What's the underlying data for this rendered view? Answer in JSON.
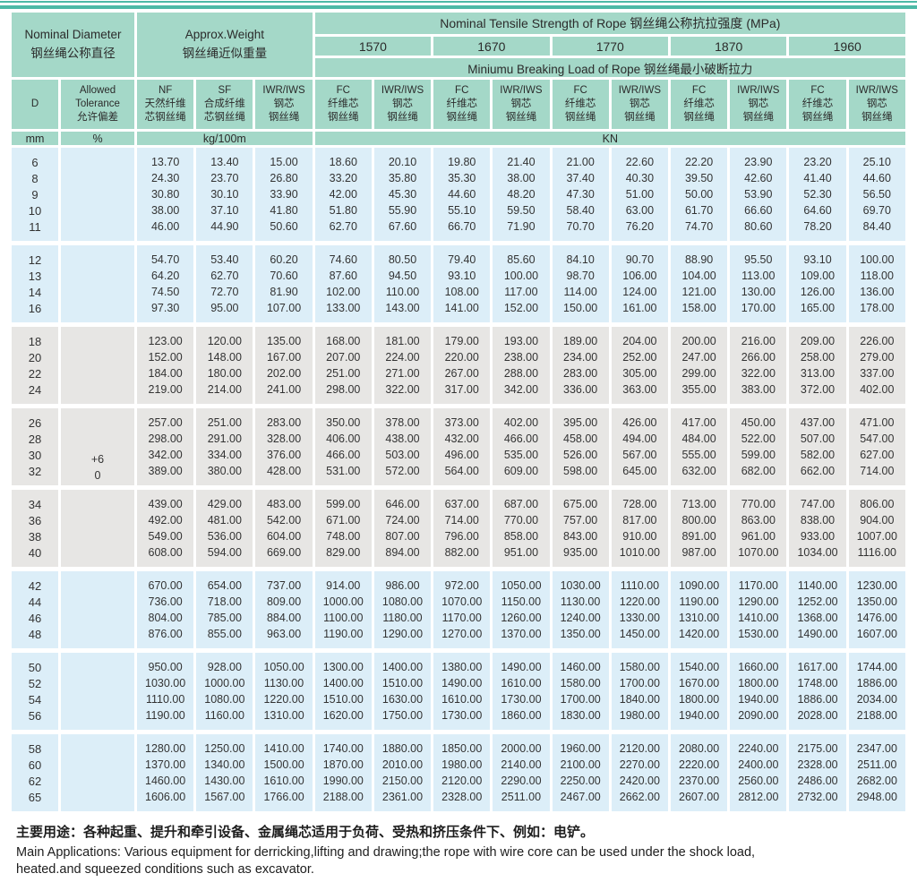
{
  "colors": {
    "header_bg": "#a4d8c8",
    "group_blue": "#dceef8",
    "group_gray": "#e7e6e4",
    "rule_teal": "#4db9a6",
    "text": "#333333"
  },
  "table": {
    "header": {
      "nominal_diameter": {
        "en": "Nominal Diameter",
        "zh": "钢丝绳公称直径"
      },
      "approx_weight": {
        "en": "Approx.Weight",
        "zh": "钢丝绳近似重量"
      },
      "tensile_title": "Nominal Tensile Strength of Rope 钢丝绳公称抗拉强度 (MPa)",
      "strengths": [
        "1570",
        "1670",
        "1770",
        "1870",
        "1960"
      ],
      "breaking_title": "Miniumu Breaking Load of Rope 钢丝绳最小破断拉力",
      "col_d": "D",
      "col_tolerance": [
        "Allowed",
        "Tolerance",
        "允许偏差"
      ],
      "col_nf": [
        "NF",
        "天然纤维",
        "芯钢丝绳"
      ],
      "col_sf": [
        "SF",
        "合成纤维",
        "芯钢丝绳"
      ],
      "col_iwr": [
        "IWR/IWS",
        "钢芯",
        "钢丝绳"
      ],
      "col_fc": [
        "FC",
        "纤维芯",
        "钢丝绳"
      ],
      "units": {
        "d": "mm",
        "tolerance": "%",
        "weight": "kg/100m",
        "load": "KN"
      }
    },
    "groups": [
      {
        "bg": "blue",
        "rows": [
          {
            "d": "6",
            "values": [
              "13.70",
              "13.40",
              "15.00",
              "18.60",
              "20.10",
              "19.80",
              "21.40",
              "21.00",
              "22.60",
              "22.20",
              "23.90",
              "23.20",
              "25.10"
            ]
          },
          {
            "d": "8",
            "values": [
              "24.30",
              "23.70",
              "26.80",
              "33.20",
              "35.80",
              "35.30",
              "38.00",
              "37.40",
              "40.30",
              "39.50",
              "42.60",
              "41.40",
              "44.60"
            ]
          },
          {
            "d": "9",
            "values": [
              "30.80",
              "30.10",
              "33.90",
              "42.00",
              "45.30",
              "44.60",
              "48.20",
              "47.30",
              "51.00",
              "50.00",
              "53.90",
              "52.30",
              "56.50"
            ]
          },
          {
            "d": "10",
            "values": [
              "38.00",
              "37.10",
              "41.80",
              "51.80",
              "55.90",
              "55.10",
              "59.50",
              "58.40",
              "63.00",
              "61.70",
              "66.60",
              "64.60",
              "69.70"
            ]
          },
          {
            "d": "11",
            "values": [
              "46.00",
              "44.90",
              "50.60",
              "62.70",
              "67.60",
              "66.70",
              "71.90",
              "70.70",
              "76.20",
              "74.70",
              "80.60",
              "78.20",
              "84.40"
            ]
          }
        ]
      },
      {
        "bg": "blue",
        "rows": [
          {
            "d": "12",
            "values": [
              "54.70",
              "53.40",
              "60.20",
              "74.60",
              "80.50",
              "79.40",
              "85.60",
              "84.10",
              "90.70",
              "88.90",
              "95.50",
              "93.10",
              "100.00"
            ]
          },
          {
            "d": "13",
            "values": [
              "64.20",
              "62.70",
              "70.60",
              "87.60",
              "94.50",
              "93.10",
              "100.00",
              "98.70",
              "106.00",
              "104.00",
              "113.00",
              "109.00",
              "118.00"
            ]
          },
          {
            "d": "14",
            "values": [
              "74.50",
              "72.70",
              "81.90",
              "102.00",
              "110.00",
              "108.00",
              "117.00",
              "114.00",
              "124.00",
              "121.00",
              "130.00",
              "126.00",
              "136.00"
            ]
          },
          {
            "d": "16",
            "values": [
              "97.30",
              "95.00",
              "107.00",
              "133.00",
              "143.00",
              "141.00",
              "152.00",
              "150.00",
              "161.00",
              "158.00",
              "170.00",
              "165.00",
              "178.00"
            ]
          }
        ]
      },
      {
        "bg": "gray",
        "rows": [
          {
            "d": "18",
            "values": [
              "123.00",
              "120.00",
              "135.00",
              "168.00",
              "181.00",
              "179.00",
              "193.00",
              "189.00",
              "204.00",
              "200.00",
              "216.00",
              "209.00",
              "226.00"
            ]
          },
          {
            "d": "20",
            "values": [
              "152.00",
              "148.00",
              "167.00",
              "207.00",
              "224.00",
              "220.00",
              "238.00",
              "234.00",
              "252.00",
              "247.00",
              "266.00",
              "258.00",
              "279.00"
            ]
          },
          {
            "d": "22",
            "values": [
              "184.00",
              "180.00",
              "202.00",
              "251.00",
              "271.00",
              "267.00",
              "288.00",
              "283.00",
              "305.00",
              "299.00",
              "322.00",
              "313.00",
              "337.00"
            ]
          },
          {
            "d": "24",
            "values": [
              "219.00",
              "214.00",
              "241.00",
              "298.00",
              "322.00",
              "317.00",
              "342.00",
              "336.00",
              "363.00",
              "355.00",
              "383.00",
              "372.00",
              "402.00"
            ]
          }
        ]
      },
      {
        "bg": "gray",
        "tolerance": [
          "+6",
          "0"
        ],
        "rows": [
          {
            "d": "26",
            "values": [
              "257.00",
              "251.00",
              "283.00",
              "350.00",
              "378.00",
              "373.00",
              "402.00",
              "395.00",
              "426.00",
              "417.00",
              "450.00",
              "437.00",
              "471.00"
            ]
          },
          {
            "d": "28",
            "values": [
              "298.00",
              "291.00",
              "328.00",
              "406.00",
              "438.00",
              "432.00",
              "466.00",
              "458.00",
              "494.00",
              "484.00",
              "522.00",
              "507.00",
              "547.00"
            ]
          },
          {
            "d": "30",
            "values": [
              "342.00",
              "334.00",
              "376.00",
              "466.00",
              "503.00",
              "496.00",
              "535.00",
              "526.00",
              "567.00",
              "555.00",
              "599.00",
              "582.00",
              "627.00"
            ]
          },
          {
            "d": "32",
            "values": [
              "389.00",
              "380.00",
              "428.00",
              "531.00",
              "572.00",
              "564.00",
              "609.00",
              "598.00",
              "645.00",
              "632.00",
              "682.00",
              "662.00",
              "714.00"
            ]
          }
        ]
      },
      {
        "bg": "gray",
        "rows": [
          {
            "d": "34",
            "values": [
              "439.00",
              "429.00",
              "483.00",
              "599.00",
              "646.00",
              "637.00",
              "687.00",
              "675.00",
              "728.00",
              "713.00",
              "770.00",
              "747.00",
              "806.00"
            ]
          },
          {
            "d": "36",
            "values": [
              "492.00",
              "481.00",
              "542.00",
              "671.00",
              "724.00",
              "714.00",
              "770.00",
              "757.00",
              "817.00",
              "800.00",
              "863.00",
              "838.00",
              "904.00"
            ]
          },
          {
            "d": "38",
            "values": [
              "549.00",
              "536.00",
              "604.00",
              "748.00",
              "807.00",
              "796.00",
              "858.00",
              "843.00",
              "910.00",
              "891.00",
              "961.00",
              "933.00",
              "1007.00"
            ]
          },
          {
            "d": "40",
            "values": [
              "608.00",
              "594.00",
              "669.00",
              "829.00",
              "894.00",
              "882.00",
              "951.00",
              "935.00",
              "1010.00",
              "987.00",
              "1070.00",
              "1034.00",
              "1116.00"
            ]
          }
        ]
      },
      {
        "bg": "blue",
        "rows": [
          {
            "d": "42",
            "values": [
              "670.00",
              "654.00",
              "737.00",
              "914.00",
              "986.00",
              "972.00",
              "1050.00",
              "1030.00",
              "1110.00",
              "1090.00",
              "1170.00",
              "1140.00",
              "1230.00"
            ]
          },
          {
            "d": "44",
            "values": [
              "736.00",
              "718.00",
              "809.00",
              "1000.00",
              "1080.00",
              "1070.00",
              "1150.00",
              "1130.00",
              "1220.00",
              "1190.00",
              "1290.00",
              "1252.00",
              "1350.00"
            ]
          },
          {
            "d": "46",
            "values": [
              "804.00",
              "785.00",
              "884.00",
              "1100.00",
              "1180.00",
              "1170.00",
              "1260.00",
              "1240.00",
              "1330.00",
              "1310.00",
              "1410.00",
              "1368.00",
              "1476.00"
            ]
          },
          {
            "d": "48",
            "values": [
              "876.00",
              "855.00",
              "963.00",
              "1190.00",
              "1290.00",
              "1270.00",
              "1370.00",
              "1350.00",
              "1450.00",
              "1420.00",
              "1530.00",
              "1490.00",
              "1607.00"
            ]
          }
        ]
      },
      {
        "bg": "blue",
        "rows": [
          {
            "d": "50",
            "values": [
              "950.00",
              "928.00",
              "1050.00",
              "1300.00",
              "1400.00",
              "1380.00",
              "1490.00",
              "1460.00",
              "1580.00",
              "1540.00",
              "1660.00",
              "1617.00",
              "1744.00"
            ]
          },
          {
            "d": "52",
            "values": [
              "1030.00",
              "1000.00",
              "1130.00",
              "1400.00",
              "1510.00",
              "1490.00",
              "1610.00",
              "1580.00",
              "1700.00",
              "1670.00",
              "1800.00",
              "1748.00",
              "1886.00"
            ]
          },
          {
            "d": "54",
            "values": [
              "1110.00",
              "1080.00",
              "1220.00",
              "1510.00",
              "1630.00",
              "1610.00",
              "1730.00",
              "1700.00",
              "1840.00",
              "1800.00",
              "1940.00",
              "1886.00",
              "2034.00"
            ]
          },
          {
            "d": "56",
            "values": [
              "1190.00",
              "1160.00",
              "1310.00",
              "1620.00",
              "1750.00",
              "1730.00",
              "1860.00",
              "1830.00",
              "1980.00",
              "1940.00",
              "2090.00",
              "2028.00",
              "2188.00"
            ]
          }
        ]
      },
      {
        "bg": "blue",
        "rows": [
          {
            "d": "58",
            "values": [
              "1280.00",
              "1250.00",
              "1410.00",
              "1740.00",
              "1880.00",
              "1850.00",
              "2000.00",
              "1960.00",
              "2120.00",
              "2080.00",
              "2240.00",
              "2175.00",
              "2347.00"
            ]
          },
          {
            "d": "60",
            "values": [
              "1370.00",
              "1340.00",
              "1500.00",
              "1870.00",
              "2010.00",
              "1980.00",
              "2140.00",
              "2100.00",
              "2270.00",
              "2220.00",
              "2400.00",
              "2328.00",
              "2511.00"
            ]
          },
          {
            "d": "62",
            "values": [
              "1460.00",
              "1430.00",
              "1610.00",
              "1990.00",
              "2150.00",
              "2120.00",
              "2290.00",
              "2250.00",
              "2420.00",
              "2370.00",
              "2560.00",
              "2486.00",
              "2682.00"
            ]
          },
          {
            "d": "65",
            "values": [
              "1606.00",
              "1567.00",
              "1766.00",
              "2188.00",
              "2361.00",
              "2328.00",
              "2511.00",
              "2467.00",
              "2662.00",
              "2607.00",
              "2812.00",
              "2732.00",
              "2948.00"
            ]
          }
        ]
      }
    ]
  },
  "footer": {
    "line_zh": "主要用途：各种起重、提升和牵引设备、金属绳芯适用于负荷、受热和挤压条件下、例如：电铲。",
    "line_en_1": "Main Applications: Various equipment for derricking,lifting and drawing;the rope with wire core can be used under the shock load,",
    "line_en_2": "heated.and squeezed conditions such as excavator."
  }
}
